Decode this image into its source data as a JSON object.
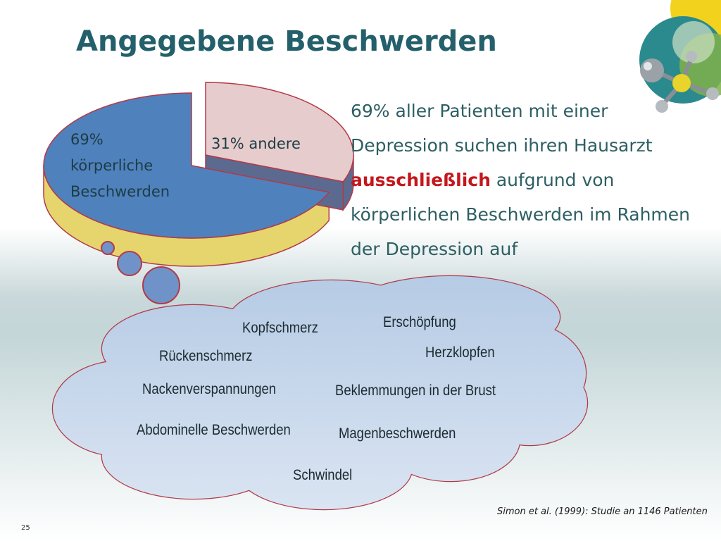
{
  "slide": {
    "title": "Angegebene Beschwerden",
    "statement": {
      "before": "69% aller Patienten mit einer Depression suchen ihren Hausarzt ",
      "emphasis": "ausschließlich",
      "after": " aufgrund von körperlichen Beschwerden im Rahmen der Depression auf"
    },
    "symptoms": [
      "Kopfschmerz",
      "Erschöpfung",
      "Rückenschmerz",
      "Herzklopfen",
      "Nackenverspannungen",
      "Beklemmungen in der Brust",
      "Abdominelle Beschwerden",
      "Magenbeschwerden",
      "Schwindel"
    ],
    "citation": "Simon et al. (1999): Studie an 1146 Patienten",
    "page_number": "25"
  },
  "chart_data": {
    "type": "pie",
    "categories": [
      "69%\nkörperliche\nBeschwerden",
      "31% andere"
    ],
    "values": [
      69,
      31
    ],
    "colors": {
      "main_top": "#4f81bd",
      "main_side": "#e5d56c",
      "rest_top": "#e6cccc",
      "rest_side": "#5c6a8f",
      "outline": "#b23a48"
    }
  }
}
